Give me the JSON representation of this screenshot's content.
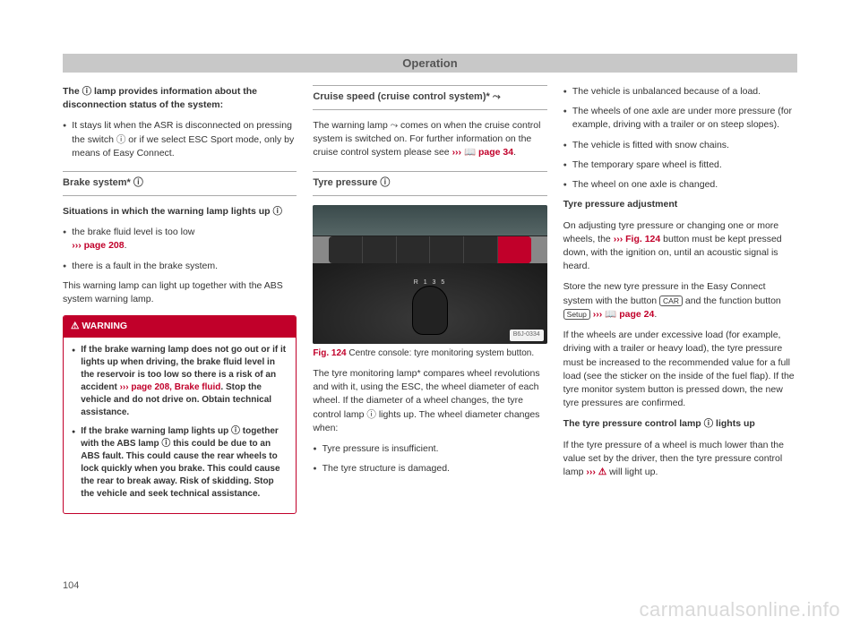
{
  "header": "Operation",
  "pageNumber": "104",
  "watermark": "carmanualsonline.info",
  "col1": {
    "intro_title": "The ⓘ lamp provides information about the disconnection status of the system:",
    "intro_bullet": "It stays lit when the ASR is disconnected on pressing the switch ⓘ or if we select ESC Sport mode, only by means of Easy Connect.",
    "brake_title": "Brake system* ⓘ",
    "brake_sub": "Situations in which the warning lamp lights up ⓘ",
    "brake_b1a": "the brake fluid level is too low",
    "brake_b1b": "››› page 208",
    "brake_b1b_suffix": ".",
    "brake_b2": "there is a fault in the brake system.",
    "brake_p": "This warning lamp can light up together with the ABS system warning lamp.",
    "warn_head": "WARNING",
    "warn_b1_a": "If the brake warning lamp does not go out or if it lights up when driving, the brake fluid level in the reservoir is too low so there is a risk of an accident ",
    "warn_b1_b": "››› page 208, Brake fluid",
    "warn_b1_c": ". Stop the vehicle and do not drive on. Obtain technical assistance.",
    "warn_b2": "If the brake warning lamp lights up ⓘ together with the ABS lamp ⓘ this could be due to an ABS fault. This could cause the rear wheels to lock quickly when you brake. This could cause the rear to break away. Risk of skidding. Stop the vehicle and seek technical assistance."
  },
  "col2": {
    "cruise_title": "Cruise speed (cruise control system)* ⤳",
    "cruise_p1": "The warning lamp ⤳ comes on when the cruise control system is switched on. For further information on the cruise control system please see ",
    "cruise_link": "››› 📖 page 34",
    "cruise_suffix": ".",
    "tyre_title": "Tyre pressure ⓘ",
    "fig_label": "B6J-0334",
    "fig_gears": "R 1 3 5",
    "caption_no": "Fig. 124",
    "caption_txt": "  Centre console: tyre monitoring system button.",
    "tyre_p1": "The tyre monitoring lamp* compares wheel revolutions and with it, using the ESC, the wheel diameter of each wheel. If the diameter of a wheel changes, the tyre control lamp ⓘ lights up. The wheel diameter changes when:",
    "tyre_b1": "Tyre pressure is insufficient.",
    "tyre_b2": "The tyre structure is damaged."
  },
  "col3": {
    "b1": "The vehicle is unbalanced because of a load.",
    "b2": "The wheels of one axle are under more pressure (for example, driving with a trailer or on steep slopes).",
    "b3": "The vehicle is fitted with snow chains.",
    "b4": "The temporary spare wheel is fitted.",
    "b5": "The wheel on one axle is changed.",
    "adj_title": "Tyre pressure adjustment",
    "adj_p1a": "On adjusting tyre pressure or changing one or more wheels, the ",
    "adj_p1b": "››› Fig. 124",
    "adj_p1c": " button must be kept pressed down, with the ignition on, until an acoustic signal is heard.",
    "adj_p2a": "Store the new tyre pressure in the Easy Connect system with the button ",
    "btn_car": "CAR",
    "adj_p2b": " and the function button ",
    "btn_setup": "Setup",
    "adj_p2c": " ",
    "adj_link": "››› 📖 page 24",
    "adj_p2d": ".",
    "adj_p3": "If the wheels are under excessive load (for example, driving with a trailer or heavy load), the tyre pressure must be increased to the recommended value for a full load (see the sticker on the inside of the fuel flap). If the tyre monitor system button is pressed down, the new tyre pressures are confirmed.",
    "lamp_title": "The tyre pressure control lamp ⓘ lights up",
    "lamp_p1a": "If the tyre pressure of a wheel is much lower than the value set by the driver, then the tyre pressure control lamp ",
    "lamp_link": "››› ⚠",
    "lamp_p1b": " will light up."
  }
}
